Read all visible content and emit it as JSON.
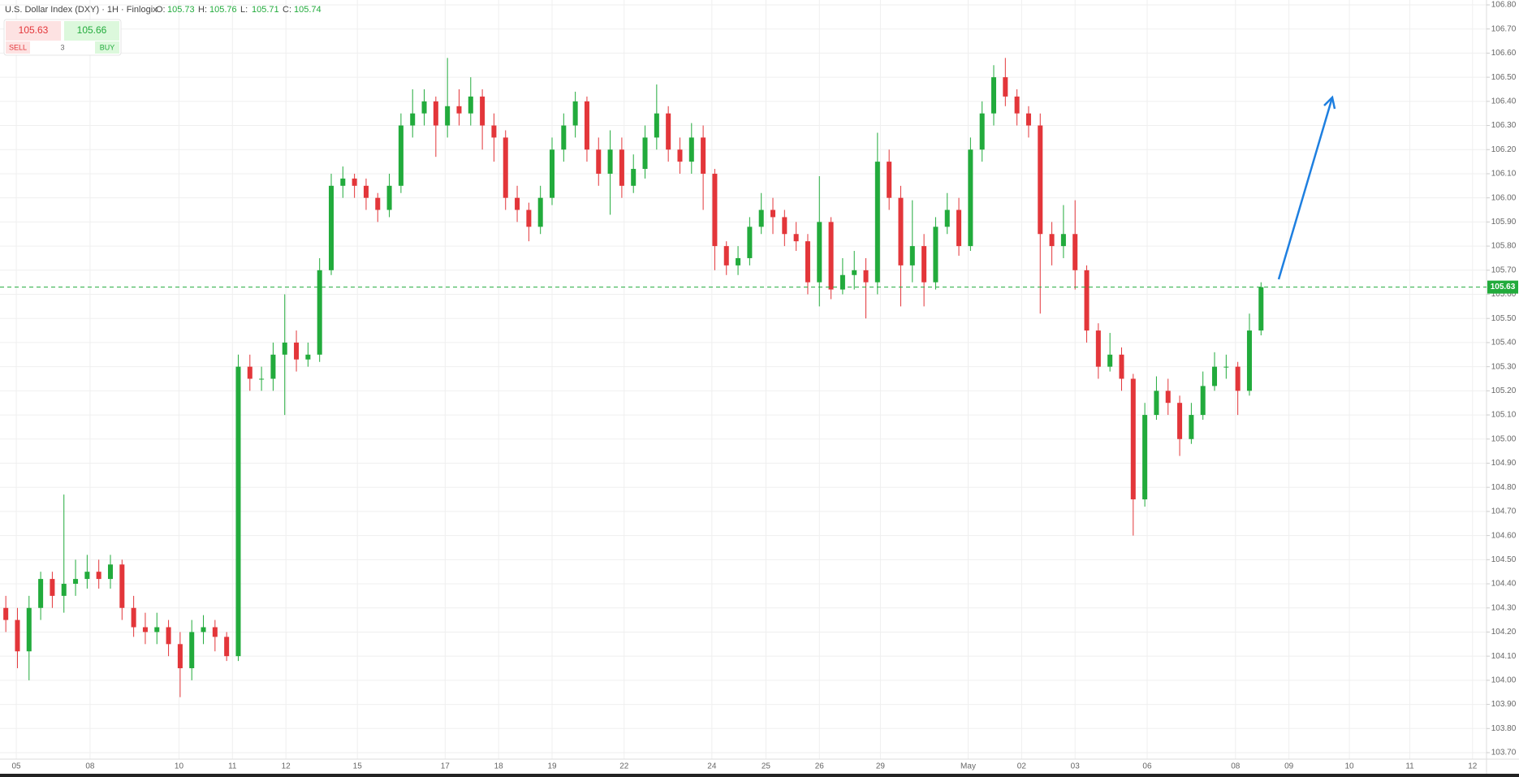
{
  "ohlc_header": {
    "title": "U.S. Dollar Index (DXY) · 1H · Finlogix",
    "fields": [
      {
        "key": "O:",
        "value": 105.73
      },
      {
        "key": "H:",
        "value": 105.76
      },
      {
        "key": "L:",
        "value": 105.71
      },
      {
        "key": "C:",
        "value": 105.74
      }
    ]
  },
  "trade_panel": {
    "sell_price": 105.63,
    "buy_price": 105.66,
    "quantity": 3,
    "sell_label": "SELL",
    "buy_label": "BUY"
  },
  "chart_data": {
    "type": "candlestick",
    "up_color": "#22ab3c",
    "down_color": "#e3363a",
    "grid": true,
    "last_price": 105.63,
    "open": [
      104.3,
      104.25,
      104.12,
      104.3,
      104.42,
      104.35,
      104.4,
      104.42,
      104.45,
      104.42,
      104.48,
      104.3,
      104.22,
      104.2,
      104.22,
      104.15,
      104.05,
      104.2,
      104.22,
      104.18,
      104.1,
      105.3,
      105.25,
      105.25,
      105.35,
      105.4,
      105.33,
      105.35,
      105.7,
      106.05,
      106.08,
      106.05,
      106.0,
      105.95,
      106.05,
      106.3,
      106.35,
      106.4,
      106.3,
      106.38,
      106.35,
      106.42,
      106.3,
      106.25,
      106.0,
      105.95,
      105.88,
      106.0,
      106.2,
      106.3,
      106.4,
      106.2,
      106.1,
      106.2,
      106.05,
      106.12,
      106.25,
      106.35,
      106.2,
      106.15,
      106.25,
      106.1,
      105.8,
      105.72,
      105.75,
      105.88,
      105.95,
      105.92,
      105.85,
      105.82,
      105.65,
      105.9,
      105.62,
      105.68,
      105.7,
      105.65,
      106.15,
      106.0,
      105.72,
      105.8,
      105.65,
      105.88,
      105.95,
      105.8,
      106.2,
      106.35,
      106.5,
      106.42,
      106.35,
      106.3,
      105.85,
      105.8,
      105.85,
      105.7,
      105.45,
      105.3,
      105.35,
      105.25,
      104.75,
      105.1,
      105.2,
      105.15,
      105.0,
      105.1,
      105.22,
      105.3,
      105.3,
      105.2,
      105.45
    ],
    "high": [
      104.35,
      104.3,
      104.35,
      104.45,
      104.45,
      104.77,
      104.5,
      104.52,
      104.5,
      104.52,
      104.5,
      104.35,
      104.28,
      104.28,
      104.25,
      104.2,
      104.25,
      104.27,
      104.25,
      104.2,
      105.35,
      105.35,
      105.3,
      105.4,
      105.6,
      105.45,
      105.4,
      105.75,
      106.1,
      106.13,
      106.1,
      106.08,
      106.02,
      106.1,
      106.35,
      106.45,
      106.45,
      106.42,
      106.58,
      106.45,
      106.5,
      106.45,
      106.35,
      106.28,
      106.05,
      105.98,
      106.05,
      106.25,
      106.35,
      106.44,
      106.42,
      106.25,
      106.28,
      106.25,
      106.18,
      106.3,
      106.47,
      106.38,
      106.25,
      106.31,
      106.3,
      106.12,
      105.82,
      105.8,
      105.92,
      106.02,
      106.0,
      105.95,
      105.9,
      105.85,
      106.09,
      105.92,
      105.75,
      105.78,
      105.75,
      106.27,
      106.2,
      106.05,
      105.99,
      105.85,
      105.92,
      106.02,
      106.0,
      106.25,
      106.4,
      106.55,
      106.58,
      106.45,
      106.38,
      106.35,
      105.9,
      105.97,
      105.99,
      105.72,
      105.48,
      105.44,
      105.38,
      105.27,
      105.15,
      105.26,
      105.25,
      105.18,
      105.15,
      105.28,
      105.36,
      105.35,
      105.32,
      105.52,
      105.65
    ],
    "low": [
      104.2,
      104.05,
      104.0,
      104.25,
      104.3,
      104.28,
      104.35,
      104.38,
      104.38,
      104.38,
      104.25,
      104.18,
      104.15,
      104.15,
      104.1,
      103.93,
      104.0,
      104.15,
      104.12,
      104.08,
      104.08,
      105.2,
      105.2,
      105.2,
      105.1,
      105.28,
      105.3,
      105.32,
      105.68,
      106.0,
      106.0,
      105.95,
      105.9,
      105.92,
      106.02,
      106.25,
      106.3,
      106.17,
      106.25,
      106.3,
      106.3,
      106.2,
      106.15,
      105.95,
      105.9,
      105.82,
      105.85,
      105.97,
      106.15,
      106.25,
      106.15,
      106.05,
      105.93,
      106.0,
      106.02,
      106.08,
      106.2,
      106.15,
      106.1,
      106.1,
      105.95,
      105.7,
      105.68,
      105.68,
      105.72,
      105.85,
      105.85,
      105.8,
      105.78,
      105.6,
      105.55,
      105.58,
      105.6,
      105.62,
      105.5,
      105.6,
      105.95,
      105.55,
      105.65,
      105.55,
      105.62,
      105.85,
      105.76,
      105.78,
      106.15,
      106.3,
      106.38,
      106.3,
      106.25,
      105.52,
      105.72,
      105.75,
      105.62,
      105.4,
      105.25,
      105.28,
      105.2,
      104.6,
      104.72,
      105.08,
      105.1,
      104.93,
      104.98,
      105.08,
      105.2,
      105.25,
      105.1,
      105.18,
      105.43
    ],
    "close": [
      104.25,
      104.12,
      104.3,
      104.42,
      104.35,
      104.4,
      104.42,
      104.45,
      104.42,
      104.48,
      104.3,
      104.22,
      104.2,
      104.22,
      104.15,
      104.05,
      104.2,
      104.22,
      104.18,
      104.1,
      105.3,
      105.25,
      105.25,
      105.35,
      105.4,
      105.33,
      105.35,
      105.7,
      106.05,
      106.08,
      106.05,
      106.0,
      105.95,
      106.05,
      106.3,
      106.35,
      106.4,
      106.3,
      106.38,
      106.35,
      106.42,
      106.3,
      106.25,
      106.0,
      105.95,
      105.88,
      106.0,
      106.2,
      106.3,
      106.4,
      106.2,
      106.1,
      106.2,
      106.05,
      106.12,
      106.25,
      106.35,
      106.2,
      106.15,
      106.25,
      106.1,
      105.8,
      105.72,
      105.75,
      105.88,
      105.95,
      105.92,
      105.85,
      105.82,
      105.65,
      105.9,
      105.62,
      105.68,
      105.7,
      105.65,
      106.15,
      106.0,
      105.72,
      105.8,
      105.65,
      105.88,
      105.95,
      105.8,
      106.2,
      106.35,
      106.5,
      106.42,
      106.35,
      106.3,
      105.85,
      105.8,
      105.85,
      105.7,
      105.45,
      105.3,
      105.35,
      105.25,
      104.75,
      105.1,
      105.2,
      105.15,
      105.0,
      105.1,
      105.22,
      105.3,
      105.3,
      105.2,
      105.45,
      105.63
    ],
    "xlim": [
      0,
      127.9
    ],
    "xticks": [
      {
        "value": 1.4,
        "label": "05"
      },
      {
        "value": 7.75,
        "label": "08"
      },
      {
        "value": 15.4,
        "label": "10"
      },
      {
        "value": 20,
        "label": "11"
      },
      {
        "value": 24.6,
        "label": "12"
      },
      {
        "value": 30.75,
        "label": "15"
      },
      {
        "value": 38.3,
        "label": "17"
      },
      {
        "value": 42.9,
        "label": "18"
      },
      {
        "value": 47.5,
        "label": "19"
      },
      {
        "value": 53.7,
        "label": "22"
      },
      {
        "value": 61.25,
        "label": "24"
      },
      {
        "value": 65.9,
        "label": "25"
      },
      {
        "value": 70.5,
        "label": "26"
      },
      {
        "value": 75.75,
        "label": "29"
      },
      {
        "value": 83.3,
        "label": "May"
      },
      {
        "value": 87.9,
        "label": "02"
      },
      {
        "value": 92.5,
        "label": "03"
      },
      {
        "value": 98.7,
        "label": "06"
      },
      {
        "value": 106.3,
        "label": "08"
      },
      {
        "value": 110.9,
        "label": "09"
      },
      {
        "value": 116.1,
        "label": "10"
      },
      {
        "value": 121.3,
        "label": "11"
      },
      {
        "value": 126.7,
        "label": "12"
      }
    ],
    "ylim": [
      103.7,
      106.8
    ],
    "yticks": [
      {
        "value": 103.7,
        "label": "103.70"
      },
      {
        "value": 103.8,
        "label": "103.80"
      },
      {
        "value": 103.9,
        "label": "103.90"
      },
      {
        "value": 104.0,
        "label": "104.00"
      },
      {
        "value": 104.1,
        "label": "104.10"
      },
      {
        "value": 104.2,
        "label": "104.20"
      },
      {
        "value": 104.3,
        "label": "104.30"
      },
      {
        "value": 104.4,
        "label": "104.40"
      },
      {
        "value": 104.5,
        "label": "104.50"
      },
      {
        "value": 104.6,
        "label": "104.60"
      },
      {
        "value": 104.7,
        "label": "104.70"
      },
      {
        "value": 104.8,
        "label": "104.80"
      },
      {
        "value": 104.9,
        "label": "104.90"
      },
      {
        "value": 105.0,
        "label": "105.00"
      },
      {
        "value": 105.1,
        "label": "105.10"
      },
      {
        "value": 105.2,
        "label": "105.20"
      },
      {
        "value": 105.3,
        "label": "105.30"
      },
      {
        "value": 105.4,
        "label": "105.40"
      },
      {
        "value": 105.5,
        "label": "105.50"
      },
      {
        "value": 105.6,
        "label": "105.60"
      },
      {
        "value": 105.7,
        "label": "105.70"
      },
      {
        "value": 105.8,
        "label": "105.80"
      },
      {
        "value": 105.9,
        "label": "105.90"
      },
      {
        "value": 106.0,
        "label": "106.00"
      },
      {
        "value": 106.1,
        "label": "106.10"
      },
      {
        "value": 106.2,
        "label": "106.20"
      },
      {
        "value": 106.3,
        "label": "106.30"
      },
      {
        "value": 106.4,
        "label": "106.40"
      },
      {
        "value": 106.5,
        "label": "106.50"
      },
      {
        "value": 106.6,
        "label": "106.60"
      },
      {
        "value": 106.7,
        "label": "106.70"
      },
      {
        "value": 106.8,
        "label": "106.80"
      }
    ]
  }
}
